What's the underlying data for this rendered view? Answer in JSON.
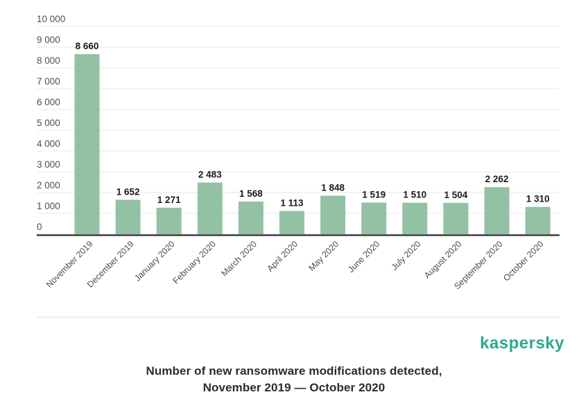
{
  "chart_data": {
    "type": "bar",
    "title": "",
    "xlabel": "",
    "ylabel": "",
    "categories": [
      "November 2019",
      "December 2019",
      "January 2020",
      "February 2020",
      "March 2020",
      "April 2020",
      "May 2020",
      "June 2020",
      "July 2020",
      "August 2020",
      "September 2020",
      "October 2020"
    ],
    "values": [
      8660,
      1652,
      1271,
      2483,
      1568,
      1113,
      1848,
      1519,
      1510,
      1504,
      2262,
      1310
    ],
    "value_labels": [
      "8 660",
      "1 652",
      "1 271",
      "2 483",
      "1 568",
      "1 113",
      "1 848",
      "1 519",
      "1 510",
      "1 504",
      "2 262",
      "1 310"
    ],
    "ylim": [
      0,
      10000
    ],
    "y_tick_step": 1000,
    "y_ticks": [
      {
        "value": 0,
        "label": "0"
      },
      {
        "value": 1000,
        "label": "1 000"
      },
      {
        "value": 2000,
        "label": "2 000"
      },
      {
        "value": 3000,
        "label": "3 000"
      },
      {
        "value": 4000,
        "label": "4 000"
      },
      {
        "value": 5000,
        "label": "5 000"
      },
      {
        "value": 6000,
        "label": "6 000"
      },
      {
        "value": 7000,
        "label": "7 000"
      },
      {
        "value": 8000,
        "label": "8 000"
      },
      {
        "value": 9000,
        "label": "9 000"
      },
      {
        "value": 10000,
        "label": "10 000"
      }
    ],
    "grid": true,
    "legend": false,
    "x_label_rotation_deg": -45,
    "colors": {
      "bar": "#93C1A4",
      "gridline": "#E7E7E7",
      "axis_line": "#3C3C3C",
      "tick_label": "#4D4D4D",
      "value_label": "#1A1A1A"
    }
  },
  "branding": {
    "logo_text": "kaspersky",
    "logo_color": "#2EA88C"
  },
  "caption": {
    "line1": "Number of new ransomware modifications detected,",
    "line2": "November 2019 — October 2020"
  }
}
